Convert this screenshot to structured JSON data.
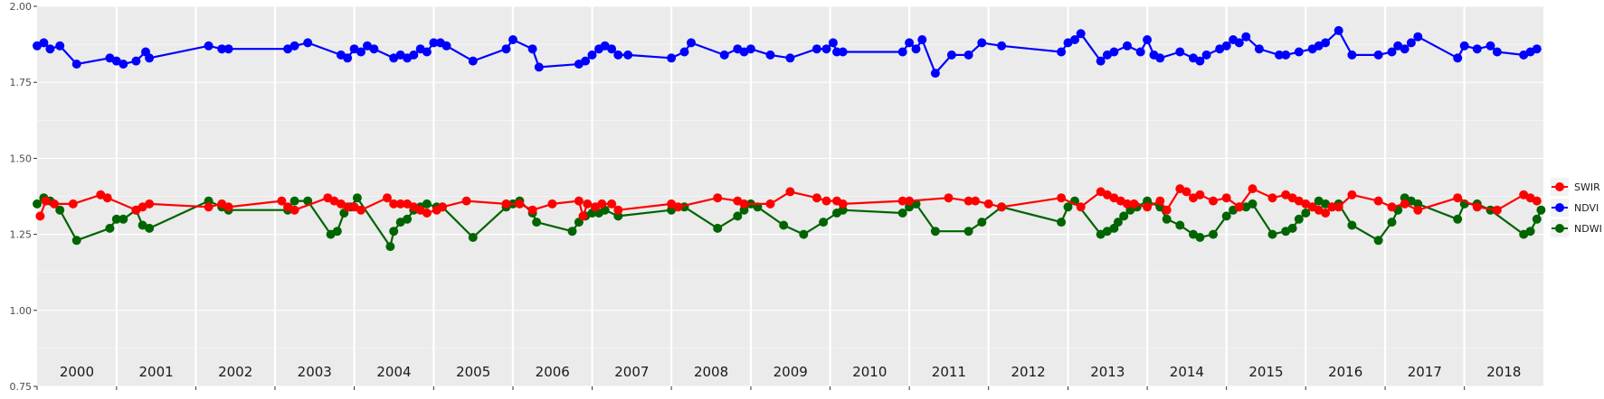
{
  "chart_data": {
    "type": "line",
    "x_axis": {
      "type": "date",
      "range": [
        "2000-01-01",
        "2018-12-31"
      ],
      "labels_in_panel": true
    },
    "ylim": [
      0.75,
      2.0
    ],
    "yticks": [
      "0.75",
      "1.00",
      "1.25",
      "1.50",
      "1.75",
      "2.00"
    ],
    "ytick_values": [
      0.75,
      1.0,
      1.25,
      1.5,
      1.75,
      2.0
    ],
    "year_labels": [
      "2000",
      "2001",
      "2002",
      "2003",
      "2004",
      "2005",
      "2006",
      "2007",
      "2008",
      "2009",
      "2010",
      "2011",
      "2012",
      "2013",
      "2014",
      "2015",
      "2016",
      "2017",
      "2018"
    ],
    "grid": true,
    "legend": {
      "position": "right"
    },
    "series": [
      {
        "name": "SWIR",
        "color": "#ff0000",
        "x": [
          "2000-01-15",
          "2000-02-10",
          "2000-03-20",
          "2000-06-15",
          "2000-10-20",
          "2000-11-20",
          "2001-04-01",
          "2001-05-01",
          "2001-06-01",
          "2002-03-01",
          "2002-05-01",
          "2002-06-01",
          "2003-02-01",
          "2003-03-01",
          "2003-04-01",
          "2003-09-01",
          "2003-10-01",
          "2003-11-01",
          "2003-12-01",
          "2004-01-01",
          "2004-02-01",
          "2004-06-01",
          "2004-07-01",
          "2004-08-01",
          "2004-09-01",
          "2004-10-01",
          "2004-11-01",
          "2004-12-01",
          "2005-01-15",
          "2005-02-10",
          "2005-06-01",
          "2005-12-01",
          "2006-02-01",
          "2006-04-01",
          "2006-07-01",
          "2006-11-01",
          "2006-11-20",
          "2006-12-10",
          "2007-01-15",
          "2007-02-15",
          "2007-04-01",
          "2007-05-01",
          "2008-01-01",
          "2008-02-01",
          "2008-08-01",
          "2008-11-01",
          "2008-12-01",
          "2009-04-01",
          "2009-07-01",
          "2009-11-01",
          "2009-12-15",
          "2010-02-01",
          "2010-03-01",
          "2010-12-01",
          "2011-01-01",
          "2011-07-01",
          "2011-10-01",
          "2011-11-01",
          "2012-01-01",
          "2012-03-01",
          "2012-12-01",
          "2013-03-01",
          "2013-06-01",
          "2013-07-01",
          "2013-08-01",
          "2013-09-01",
          "2013-10-01",
          "2013-11-01",
          "2014-01-01",
          "2014-03-01",
          "2014-04-01",
          "2014-06-01",
          "2014-07-01",
          "2014-08-01",
          "2014-09-01",
          "2014-11-01",
          "2015-01-01",
          "2015-03-01",
          "2015-05-01",
          "2015-08-01",
          "2015-10-01",
          "2015-11-01",
          "2015-12-01",
          "2016-01-01",
          "2016-02-01",
          "2016-03-01",
          "2016-04-01",
          "2016-05-01",
          "2016-06-01",
          "2016-08-01",
          "2016-12-01",
          "2017-02-01",
          "2017-04-01",
          "2017-06-01",
          "2017-12-01",
          "2018-03-01",
          "2018-06-01",
          "2018-10-01",
          "2018-11-01",
          "2018-12-01"
        ],
        "y": [
          1.31,
          1.36,
          1.35,
          1.35,
          1.38,
          1.37,
          1.33,
          1.34,
          1.35,
          1.34,
          1.35,
          1.34,
          1.36,
          1.34,
          1.33,
          1.37,
          1.36,
          1.35,
          1.34,
          1.34,
          1.33,
          1.37,
          1.35,
          1.35,
          1.35,
          1.34,
          1.33,
          1.32,
          1.33,
          1.34,
          1.36,
          1.35,
          1.35,
          1.33,
          1.35,
          1.36,
          1.31,
          1.35,
          1.34,
          1.35,
          1.35,
          1.33,
          1.35,
          1.34,
          1.37,
          1.36,
          1.35,
          1.35,
          1.39,
          1.37,
          1.36,
          1.36,
          1.35,
          1.36,
          1.36,
          1.37,
          1.36,
          1.36,
          1.35,
          1.34,
          1.37,
          1.34,
          1.39,
          1.38,
          1.37,
          1.36,
          1.35,
          1.35,
          1.34,
          1.36,
          1.33,
          1.4,
          1.39,
          1.37,
          1.38,
          1.36,
          1.37,
          1.34,
          1.4,
          1.37,
          1.38,
          1.37,
          1.36,
          1.35,
          1.34,
          1.33,
          1.32,
          1.34,
          1.34,
          1.38,
          1.36,
          1.34,
          1.35,
          1.33,
          1.37,
          1.34,
          1.33,
          1.38,
          1.37,
          1.36
        ]
      },
      {
        "name": "NDVI",
        "color": "#0000ff",
        "x": [
          "2000-01-01",
          "2000-02-01",
          "2000-03-01",
          "2000-04-15",
          "2000-07-01",
          "2000-12-01",
          "2001-01-01",
          "2001-02-01",
          "2001-04-01",
          "2001-05-15",
          "2001-06-01",
          "2002-03-01",
          "2002-05-01",
          "2002-06-01",
          "2003-03-01",
          "2003-04-01",
          "2003-06-01",
          "2003-11-01",
          "2003-12-01",
          "2004-01-01",
          "2004-02-01",
          "2004-03-01",
          "2004-04-01",
          "2004-07-01",
          "2004-08-01",
          "2004-09-01",
          "2004-10-01",
          "2004-11-01",
          "2004-12-01",
          "2005-01-01",
          "2005-02-01",
          "2005-03-01",
          "2005-07-01",
          "2005-12-01",
          "2006-01-01",
          "2006-04-01",
          "2006-05-01",
          "2006-11-01",
          "2006-12-01",
          "2007-01-01",
          "2007-02-01",
          "2007-03-01",
          "2007-04-01",
          "2007-05-01",
          "2007-06-15",
          "2008-01-01",
          "2008-03-01",
          "2008-04-01",
          "2008-09-01",
          "2008-11-01",
          "2008-12-01",
          "2009-01-01",
          "2009-04-01",
          "2009-07-01",
          "2009-11-01",
          "2009-12-15",
          "2010-01-15",
          "2010-02-01",
          "2010-03-01",
          "2010-12-01",
          "2011-01-01",
          "2011-02-01",
          "2011-03-01",
          "2011-05-01",
          "2011-07-15",
          "2011-10-01",
          "2011-12-01",
          "2012-03-01",
          "2012-12-01",
          "2013-01-01",
          "2013-02-01",
          "2013-03-01",
          "2013-06-01",
          "2013-07-01",
          "2013-08-01",
          "2013-10-01",
          "2013-12-01",
          "2014-01-01",
          "2014-02-01",
          "2014-03-01",
          "2014-06-01",
          "2014-08-01",
          "2014-09-01",
          "2014-10-01",
          "2014-12-01",
          "2015-01-01",
          "2015-02-01",
          "2015-03-01",
          "2015-04-01",
          "2015-06-01",
          "2015-09-01",
          "2015-10-01",
          "2015-12-01",
          "2016-02-01",
          "2016-03-01",
          "2016-04-01",
          "2016-06-01",
          "2016-08-01",
          "2016-12-01",
          "2017-02-01",
          "2017-03-01",
          "2017-04-01",
          "2017-05-01",
          "2017-06-01",
          "2017-12-01",
          "2018-01-01",
          "2018-03-01",
          "2018-05-01",
          "2018-06-01",
          "2018-10-01",
          "2018-11-01",
          "2018-12-01"
        ],
        "y": [
          1.87,
          1.88,
          1.86,
          1.87,
          1.81,
          1.83,
          1.82,
          1.81,
          1.82,
          1.85,
          1.83,
          1.87,
          1.86,
          1.86,
          1.86,
          1.87,
          1.88,
          1.84,
          1.83,
          1.86,
          1.85,
          1.87,
          1.86,
          1.83,
          1.84,
          1.83,
          1.84,
          1.86,
          1.85,
          1.88,
          1.88,
          1.87,
          1.82,
          1.86,
          1.89,
          1.86,
          1.8,
          1.81,
          1.82,
          1.84,
          1.86,
          1.87,
          1.86,
          1.84,
          1.84,
          1.83,
          1.85,
          1.88,
          1.84,
          1.86,
          1.85,
          1.86,
          1.84,
          1.83,
          1.86,
          1.86,
          1.88,
          1.85,
          1.85,
          1.85,
          1.88,
          1.86,
          1.89,
          1.78,
          1.84,
          1.84,
          1.88,
          1.87,
          1.85,
          1.88,
          1.89,
          1.91,
          1.82,
          1.84,
          1.85,
          1.87,
          1.85,
          1.89,
          1.84,
          1.83,
          1.85,
          1.83,
          1.82,
          1.84,
          1.86,
          1.87,
          1.89,
          1.88,
          1.9,
          1.86,
          1.84,
          1.84,
          1.85,
          1.86,
          1.87,
          1.88,
          1.92,
          1.84,
          1.84,
          1.85,
          1.87,
          1.86,
          1.88,
          1.9,
          1.83,
          1.87,
          1.86,
          1.87,
          1.85,
          1.84,
          1.85,
          1.86
        ]
      },
      {
        "name": "NDWI",
        "color": "#006400",
        "x": [
          "2000-01-01",
          "2000-02-01",
          "2000-03-01",
          "2000-04-15",
          "2000-07-01",
          "2000-12-01",
          "2001-01-01",
          "2001-02-01",
          "2001-04-01",
          "2001-05-01",
          "2001-06-01",
          "2002-03-01",
          "2002-05-01",
          "2002-06-01",
          "2003-03-01",
          "2003-04-01",
          "2003-06-01",
          "2003-09-15",
          "2003-10-15",
          "2003-11-15",
          "2003-12-15",
          "2004-01-15",
          "2004-06-15",
          "2004-07-01",
          "2004-08-01",
          "2004-09-01",
          "2004-10-01",
          "2004-11-01",
          "2004-12-01",
          "2005-01-15",
          "2005-02-10",
          "2005-07-01",
          "2005-12-01",
          "2006-01-01",
          "2006-02-01",
          "2006-04-01",
          "2006-04-20",
          "2006-10-01",
          "2006-11-01",
          "2006-12-01",
          "2007-01-01",
          "2007-02-01",
          "2007-03-01",
          "2007-05-01",
          "2008-01-01",
          "2008-03-01",
          "2008-08-01",
          "2008-11-01",
          "2008-12-01",
          "2009-01-01",
          "2009-02-01",
          "2009-06-01",
          "2009-09-01",
          "2009-12-01",
          "2010-02-01",
          "2010-03-01",
          "2010-12-01",
          "2011-01-01",
          "2011-02-01",
          "2011-05-01",
          "2011-10-01",
          "2011-12-01",
          "2012-03-01",
          "2012-12-01",
          "2013-01-01",
          "2013-02-01",
          "2013-06-01",
          "2013-07-01",
          "2013-08-01",
          "2013-08-20",
          "2013-09-15",
          "2013-10-15",
          "2013-11-15",
          "2014-01-01",
          "2014-03-01",
          "2014-04-01",
          "2014-06-01",
          "2014-08-01",
          "2014-09-01",
          "2014-11-01",
          "2015-01-01",
          "2015-02-01",
          "2015-03-01",
          "2015-04-01",
          "2015-05-01",
          "2015-08-01",
          "2015-10-01",
          "2015-11-01",
          "2015-12-01",
          "2016-01-01",
          "2016-02-01",
          "2016-03-01",
          "2016-04-01",
          "2016-05-01",
          "2016-06-01",
          "2016-08-01",
          "2016-12-01",
          "2017-02-01",
          "2017-03-01",
          "2017-04-01",
          "2017-05-01",
          "2017-06-01",
          "2017-12-01",
          "2018-01-01",
          "2018-03-01",
          "2018-05-01",
          "2018-10-01",
          "2018-11-01",
          "2018-12-01",
          "2018-12-20"
        ],
        "y": [
          1.35,
          1.37,
          1.36,
          1.33,
          1.23,
          1.27,
          1.3,
          1.3,
          1.33,
          1.28,
          1.27,
          1.36,
          1.34,
          1.33,
          1.33,
          1.36,
          1.36,
          1.25,
          1.26,
          1.32,
          1.34,
          1.37,
          1.21,
          1.26,
          1.29,
          1.3,
          1.33,
          1.34,
          1.35,
          1.34,
          1.34,
          1.24,
          1.34,
          1.35,
          1.36,
          1.32,
          1.29,
          1.26,
          1.29,
          1.31,
          1.32,
          1.32,
          1.33,
          1.31,
          1.33,
          1.34,
          1.27,
          1.31,
          1.33,
          1.35,
          1.34,
          1.28,
          1.25,
          1.29,
          1.32,
          1.33,
          1.32,
          1.34,
          1.35,
          1.26,
          1.26,
          1.29,
          1.34,
          1.29,
          1.34,
          1.36,
          1.25,
          1.26,
          1.27,
          1.29,
          1.31,
          1.33,
          1.34,
          1.36,
          1.34,
          1.3,
          1.28,
          1.25,
          1.24,
          1.25,
          1.31,
          1.33,
          1.34,
          1.34,
          1.35,
          1.25,
          1.26,
          1.27,
          1.3,
          1.32,
          1.34,
          1.36,
          1.35,
          1.34,
          1.35,
          1.28,
          1.23,
          1.29,
          1.33,
          1.37,
          1.36,
          1.35,
          1.3,
          1.35,
          1.35,
          1.33,
          1.25,
          1.26,
          1.3,
          1.33
        ]
      }
    ]
  }
}
